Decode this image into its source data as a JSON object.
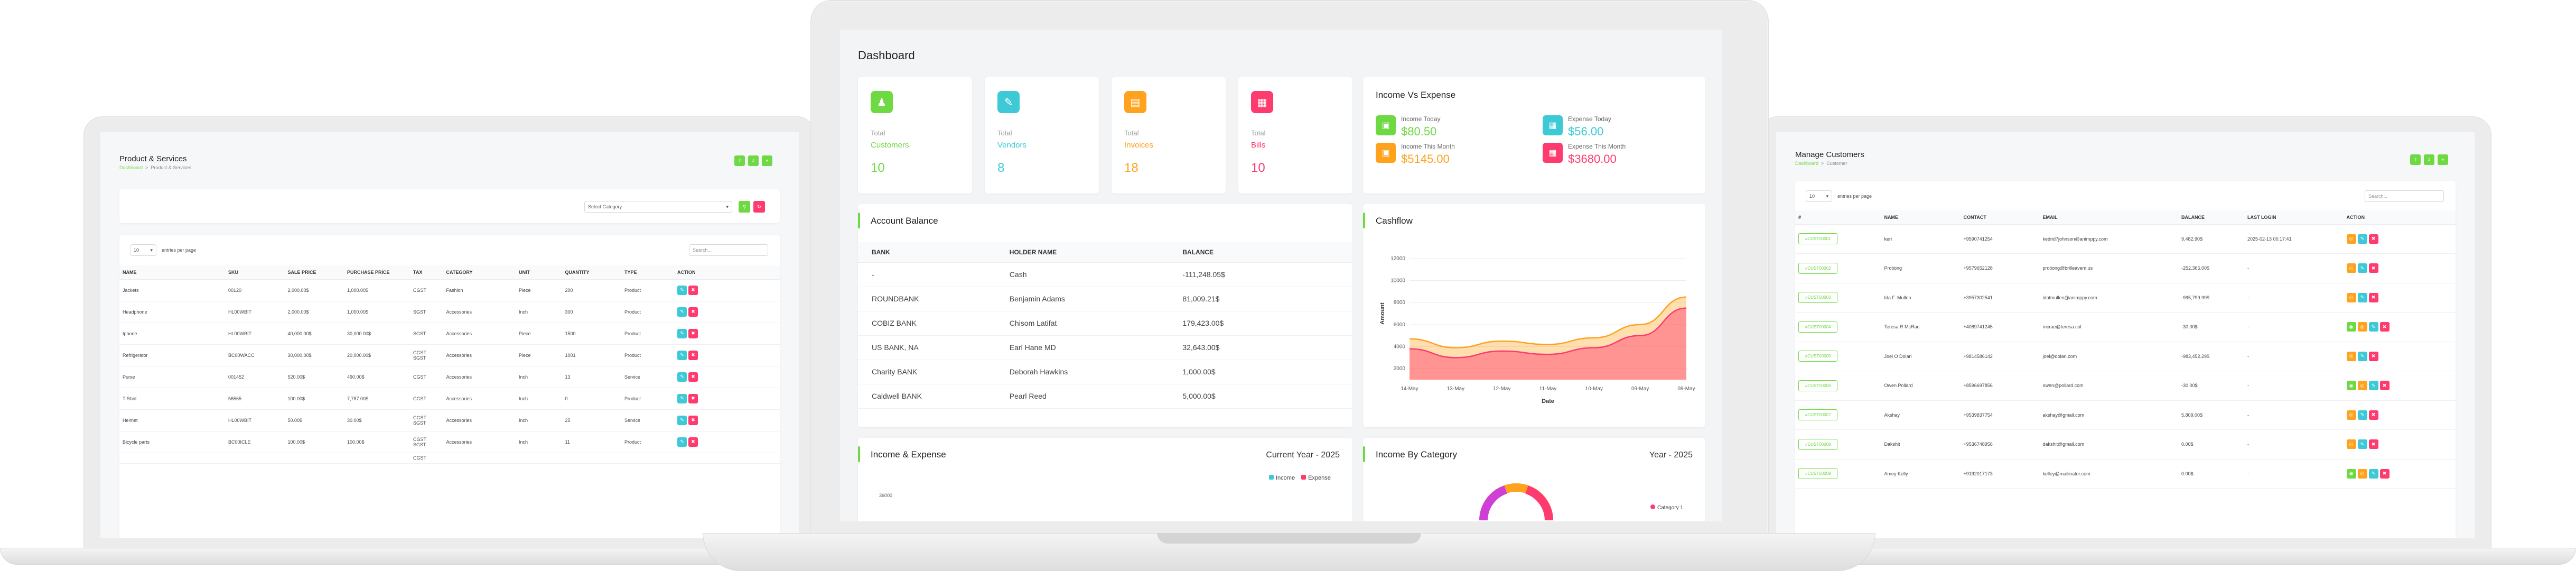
{
  "colors": {
    "green": "#6fd943",
    "teal": "#3ec9d6",
    "orange": "#ffa21d",
    "red": "#ff3a6e",
    "blue": "#51459d"
  },
  "products": {
    "title": "Product & Services",
    "breadcrumb": {
      "home": "Dashboard",
      "current": "Product & Services"
    },
    "filter_select": "Select Category",
    "entries_value": "10",
    "entries_label": "entries per page",
    "search_placeholder": "Search...",
    "columns": [
      "NAME",
      "SKU",
      "SALE PRICE",
      "PURCHASE PRICE",
      "TAX",
      "CATEGORY",
      "UNIT",
      "QUANTITY",
      "TYPE",
      "ACTION"
    ],
    "rows": [
      {
        "name": "Jackets",
        "sku": "00120",
        "sale": "2,000.00$",
        "purchase": "1,000.00$",
        "tax": "CGST",
        "category": "Fashion",
        "unit": "Piece",
        "qty": "200",
        "type": "Product",
        "del": true
      },
      {
        "name": "Headphone",
        "sku": "HL00WBIT",
        "sale": "2,000.00$",
        "purchase": "1,000.00$",
        "tax": "SGST",
        "category": "Accessories",
        "unit": "Inch",
        "qty": "300",
        "type": "Product",
        "del": true
      },
      {
        "name": "Iphone",
        "sku": "HL00WBIT",
        "sale": "40,000.00$",
        "purchase": "30,000.00$",
        "tax": "SGST",
        "category": "Accessories",
        "unit": "Piece",
        "qty": "1500",
        "type": "Product",
        "del": true
      },
      {
        "name": "Refrigerator",
        "sku": "BC00WACC",
        "sale": "30,000.00$",
        "purchase": "20,000.00$",
        "tax": "CGST SGST",
        "category": "Accessories",
        "unit": "Piece",
        "qty": "1001",
        "type": "Product",
        "del": true
      },
      {
        "name": "Purse",
        "sku": "001452",
        "sale": "520.00$",
        "purchase": "490.00$",
        "tax": "CGST",
        "category": "Accessories",
        "unit": "Inch",
        "qty": "13",
        "type": "Service",
        "del": true
      },
      {
        "name": "T-Shirt",
        "sku": "56565",
        "sale": "100.00$",
        "purchase": "7,787.00$",
        "tax": "CGST",
        "category": "Accessories",
        "unit": "Inch",
        "qty": "0",
        "type": "Product",
        "del": true
      },
      {
        "name": "Helmet",
        "sku": "HL00WBIT",
        "sale": "50.00$",
        "purchase": "30.00$",
        "tax": "CGST SGST",
        "category": "Accessories",
        "unit": "Inch",
        "qty": "25",
        "type": "Service",
        "del": true
      },
      {
        "name": "Bicycle parts",
        "sku": "BC00ICLE",
        "sale": "100.00$",
        "purchase": "100.00$",
        "tax": "CGST SGST",
        "category": "Accessories",
        "unit": "Inch",
        "qty": "11",
        "type": "Product",
        "del": true
      }
    ],
    "partial_row_tax": "CGST"
  },
  "dashboard": {
    "title": "Dashboard",
    "stats": [
      {
        "label": "Total",
        "name": "Customers",
        "value": "10",
        "color": "#6fd943",
        "icon": "users-icon"
      },
      {
        "label": "Total",
        "name": "Vendors",
        "value": "8",
        "color": "#3ec9d6",
        "icon": "note-icon"
      },
      {
        "label": "Total",
        "name": "Invoices",
        "value": "18",
        "color": "#ffa21d",
        "icon": "file-icon"
      },
      {
        "label": "Total",
        "name": "Bills",
        "value": "10",
        "color": "#ff3a6e",
        "icon": "file-invoice-icon"
      }
    ],
    "income_expense": {
      "title": "Income Vs Expense",
      "items": [
        {
          "label": "Income Today",
          "value": "$80.50",
          "color": "#6fd943",
          "icon": "report-money-icon"
        },
        {
          "label": "Expense Today",
          "value": "$56.00",
          "color": "#3ec9d6",
          "icon": "file-invoice-icon"
        },
        {
          "label": "Income This Month",
          "value": "$5145.00",
          "color": "#ffa21d",
          "icon": "report-money-icon"
        },
        {
          "label": "Expense This Month",
          "value": "$3680.00",
          "color": "#ff3a6e",
          "icon": "file-invoice-icon"
        }
      ]
    },
    "account_balance": {
      "title": "Account Balance",
      "columns": [
        "BANK",
        "HOLDER NAME",
        "BALANCE"
      ],
      "rows": [
        {
          "bank": "-",
          "holder": "Cash",
          "balance": "-111,248.05$"
        },
        {
          "bank": "ROUNDBANK",
          "holder": "Benjamin Adams",
          "balance": "81,009.21$"
        },
        {
          "bank": "COBIZ BANK",
          "holder": "Chisom Latifat",
          "balance": "179,423.00$"
        },
        {
          "bank": "US BANK, NA",
          "holder": "Earl Hane MD",
          "balance": "32,643.00$"
        },
        {
          "bank": "Charity BANK",
          "holder": "Deborah Hawkins",
          "balance": "1,000.00$"
        },
        {
          "bank": "Caldwell BANK",
          "holder": "Pearl Reed",
          "balance": "5,000.00$"
        }
      ]
    },
    "cashflow": {
      "title": "Cashflow"
    },
    "income_expense_chart": {
      "title": "Income & Expense",
      "period": "Current Year - 2025",
      "legend": [
        "Income",
        "Expense"
      ],
      "first_tick": "36000"
    },
    "income_by_category": {
      "title": "Income By Category",
      "period": "Year - 2025",
      "legend": [
        "Category 1"
      ]
    }
  },
  "chart_data": {
    "type": "area",
    "x": [
      "14-May",
      "13-May",
      "12-May",
      "11-May",
      "10-May",
      "09-May",
      "08-May"
    ],
    "xlabel": "Date",
    "ylabel": "Amount",
    "y_ticks": [
      "12000",
      "10000",
      "8000",
      "6000",
      "4000",
      "2000"
    ],
    "ylim": [
      1000,
      13000
    ],
    "grid": true,
    "series": [
      {
        "values": [
          4700,
          3900,
          4500,
          4200,
          4800,
          6000,
          8500
        ],
        "color": "#ffa21d"
      },
      {
        "values": [
          3800,
          3000,
          3600,
          3300,
          3900,
          5000,
          7500
        ],
        "color": "#ff3a6e"
      }
    ]
  },
  "customers": {
    "title": "Manage Customers",
    "breadcrumb": {
      "home": "Dashboard",
      "current": "Customer"
    },
    "entries_value": "10",
    "entries_label": "entries per page",
    "search_placeholder": "Search...",
    "columns": [
      "#",
      "NAME",
      "CONTACT",
      "EMAIL",
      "BALANCE",
      "LAST LOGIN",
      "ACTION"
    ],
    "rows": [
      {
        "id": "#CUST00001",
        "name": "keri",
        "contact": "+9590741254",
        "email": "kedrid7johnson@animppy.com",
        "balance": "9,482.90$",
        "login": "2025-02-13 00:17:41",
        "extra": false
      },
      {
        "id": "#CUST00002",
        "name": "Protiong",
        "contact": "+9579652128",
        "email": "protiong@brilleavem.us",
        "balance": "-252,365.00$",
        "login": "-",
        "extra": false
      },
      {
        "id": "#CUST00003",
        "name": "Ida F. Mullen",
        "contact": "+3957302541",
        "email": "idafmullen@animppy.com",
        "balance": "-995,799.99$",
        "login": "-",
        "extra": false
      },
      {
        "id": "#CUST00004",
        "name": "Teresa R McRae",
        "contact": "+4089741245",
        "email": "mcrae@teresa.col",
        "balance": "-30.00$",
        "login": "-",
        "extra": true
      },
      {
        "id": "#CUST00005",
        "name": "Joel O Dolan",
        "contact": "+9814586142",
        "email": "joel@dolan.com",
        "balance": "-983,452.29$",
        "login": "-",
        "extra": false
      },
      {
        "id": "#CUST00006",
        "name": "Owen Pollard",
        "contact": "+8596697856",
        "email": "owen@pollard.com",
        "balance": "-30.00$",
        "login": "-",
        "extra": true
      },
      {
        "id": "#CUST00007",
        "name": "Akshay",
        "contact": "+9539837754",
        "email": "akshay@gmail.com",
        "balance": "5,809.00$",
        "login": "-",
        "extra": false
      },
      {
        "id": "#CUST00008",
        "name": "Dakshit",
        "contact": "+9536748956",
        "email": "dakshit@gmail.com",
        "balance": "0.00$",
        "login": "-",
        "extra": false
      },
      {
        "id": "#CUST00009",
        "name": "Amey Kelly",
        "contact": "+9192017173",
        "email": "kelley@mailinator.com",
        "balance": "0.00$",
        "login": "-",
        "extra": true
      }
    ]
  }
}
